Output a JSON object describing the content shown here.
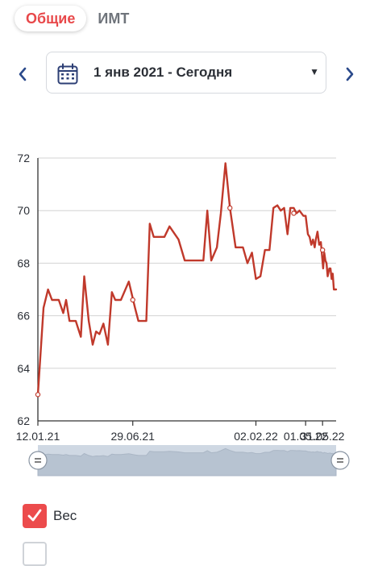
{
  "tabs": [
    {
      "label": "Общие",
      "active": true
    },
    {
      "label": "ИМТ",
      "active": false
    }
  ],
  "date_range": {
    "label": "1 янв 2021 - Сегодня",
    "icon": "calendar-icon"
  },
  "legend": {
    "weight_label": "Вес",
    "weight_checked": true
  },
  "colors": {
    "accent": "#e8484a",
    "line": "#c0392b",
    "checkbox": "#ec4b4c"
  },
  "chart_data": {
    "type": "line",
    "title": "",
    "xlabel": "",
    "ylabel": "",
    "ylim": [
      62,
      72
    ],
    "yticks": [
      62,
      64,
      66,
      68,
      70,
      72
    ],
    "x_tick_labels": [
      "12.01.21",
      "29.06.21",
      "02.02.22",
      "01.05.22",
      "31.05.22"
    ],
    "x_tick_dates": [
      "2021-01-12",
      "2021-06-29",
      "2022-02-02",
      "2022-05-01",
      "2022-05-31"
    ],
    "grid": "horizontal",
    "series": [
      {
        "values": [
          [
            "2021-01-12",
            63.0
          ],
          [
            "2021-01-22",
            66.3
          ],
          [
            "2021-01-30",
            67.0
          ],
          [
            "2021-02-06",
            66.6
          ],
          [
            "2021-02-18",
            66.6
          ],
          [
            "2021-02-26",
            66.1
          ],
          [
            "2021-03-03",
            66.6
          ],
          [
            "2021-03-09",
            65.8
          ],
          [
            "2021-03-20",
            65.8
          ],
          [
            "2021-03-29",
            65.2
          ],
          [
            "2021-04-04",
            67.5
          ],
          [
            "2021-04-12",
            65.8
          ],
          [
            "2021-04-19",
            64.9
          ],
          [
            "2021-04-25",
            65.4
          ],
          [
            "2021-05-01",
            65.3
          ],
          [
            "2021-05-08",
            65.7
          ],
          [
            "2021-05-16",
            64.9
          ],
          [
            "2021-05-23",
            66.9
          ],
          [
            "2021-05-29",
            66.6
          ],
          [
            "2021-06-08",
            66.6
          ],
          [
            "2021-06-22",
            67.3
          ],
          [
            "2021-07-03",
            66.3
          ],
          [
            "2021-07-09",
            65.8
          ],
          [
            "2021-07-23",
            65.8
          ],
          [
            "2021-07-29",
            69.5
          ],
          [
            "2021-08-05",
            69.0
          ],
          [
            "2021-08-24",
            69.0
          ],
          [
            "2021-09-02",
            69.4
          ],
          [
            "2021-09-18",
            68.9
          ],
          [
            "2021-09-29",
            68.1
          ],
          [
            "2021-11-01",
            68.1
          ],
          [
            "2021-11-08",
            70.0
          ],
          [
            "2021-11-15",
            68.1
          ],
          [
            "2021-11-25",
            68.6
          ],
          [
            "2021-12-02",
            69.9
          ],
          [
            "2021-12-10",
            71.8
          ],
          [
            "2021-12-18",
            70.1
          ],
          [
            "2021-12-28",
            68.6
          ],
          [
            "2022-01-10",
            68.6
          ],
          [
            "2022-01-18",
            68.0
          ],
          [
            "2022-01-26",
            68.4
          ],
          [
            "2022-02-02",
            67.4
          ],
          [
            "2022-02-10",
            67.5
          ],
          [
            "2022-02-18",
            68.5
          ],
          [
            "2022-02-26",
            68.5
          ],
          [
            "2022-03-05",
            70.1
          ],
          [
            "2022-03-12",
            70.2
          ],
          [
            "2022-03-18",
            70.0
          ],
          [
            "2022-03-24",
            70.1
          ],
          [
            "2022-03-30",
            69.1
          ],
          [
            "2022-04-04",
            70.1
          ],
          [
            "2022-04-10",
            70.1
          ],
          [
            "2022-04-15",
            69.9
          ],
          [
            "2022-04-20",
            70.0
          ],
          [
            "2022-04-27",
            69.8
          ],
          [
            "2022-05-01",
            69.8
          ],
          [
            "2022-05-05",
            69.1
          ],
          [
            "2022-05-08",
            69.0
          ],
          [
            "2022-05-11",
            68.7
          ],
          [
            "2022-05-14",
            68.9
          ],
          [
            "2022-05-17",
            68.6
          ],
          [
            "2022-05-19",
            68.9
          ],
          [
            "2022-05-22",
            69.2
          ],
          [
            "2022-05-25",
            68.7
          ],
          [
            "2022-05-28",
            68.8
          ],
          [
            "2022-05-30",
            68.3
          ],
          [
            "2022-06-01",
            67.8
          ],
          [
            "2022-06-03",
            68.4
          ],
          [
            "2022-06-05",
            68.1
          ],
          [
            "2022-06-07",
            68.0
          ],
          [
            "2022-06-09",
            67.5
          ],
          [
            "2022-06-12",
            67.8
          ],
          [
            "2022-06-14",
            67.8
          ],
          [
            "2022-06-16",
            67.4
          ],
          [
            "2022-06-18",
            67.6
          ],
          [
            "2022-06-20",
            67.0
          ],
          [
            "2022-06-24",
            67.0
          ]
        ]
      }
    ],
    "markers": [
      [
        "2021-01-12",
        63.0
      ],
      [
        "2021-06-29",
        66.6
      ],
      [
        "2021-12-18",
        70.1
      ],
      [
        "2022-04-10",
        69.9
      ],
      [
        "2022-05-31",
        68.5
      ]
    ]
  }
}
